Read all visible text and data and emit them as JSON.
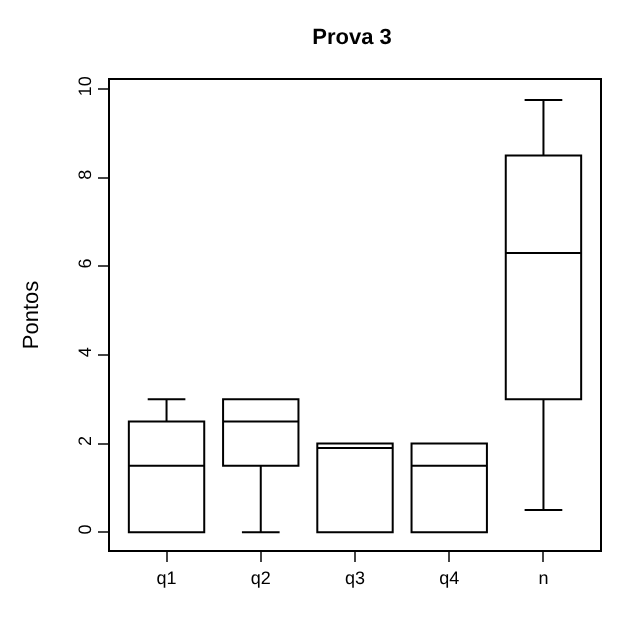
{
  "chart_data": {
    "type": "box",
    "title": "Prova 3",
    "ylabel": "Pontos",
    "categories": [
      "q1",
      "q2",
      "q3",
      "q4",
      "n"
    ],
    "boxes": [
      {
        "low": 0,
        "q1": 0,
        "median": 1.5,
        "q3": 2.5,
        "high": 3
      },
      {
        "low": 0,
        "q1": 1.5,
        "median": 2.5,
        "q3": 3,
        "high": 3
      },
      {
        "low": 0,
        "q1": 0,
        "median": 1.9,
        "q3": 2,
        "high": 2
      },
      {
        "low": 0,
        "q1": 0,
        "median": 1.5,
        "q3": 2,
        "high": 2
      },
      {
        "low": 0.5,
        "q1": 3,
        "median": 6.3,
        "q3": 8.5,
        "high": 9.75
      }
    ],
    "color": "#000000",
    "ylim": [
      -0.4,
      10.2
    ],
    "yticks": [
      0,
      2,
      4,
      6,
      8,
      10
    ],
    "legend": false
  }
}
